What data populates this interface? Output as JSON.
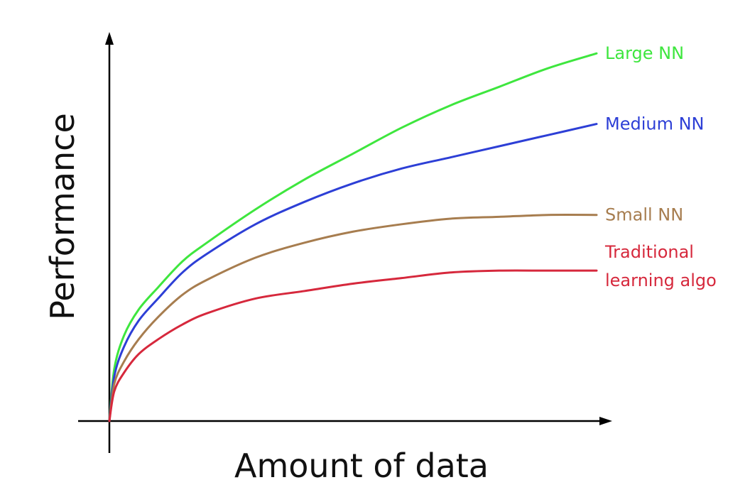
{
  "chart_data": {
    "type": "line",
    "xlabel": "Amount of data",
    "ylabel": "Performance",
    "xlim": [
      0,
      1
    ],
    "ylim": [
      0,
      1
    ],
    "grid": false,
    "legend": "inline-right",
    "series": [
      {
        "name": "Large NN",
        "label_lines": [
          "Large NN"
        ],
        "color": "#3ee63e",
        "x": [
          0,
          0.01,
          0.03,
          0.06,
          0.1,
          0.15,
          0.2,
          0.3,
          0.4,
          0.5,
          0.6,
          0.7,
          0.8,
          0.9,
          1
        ],
        "y": [
          0,
          0.14,
          0.23,
          0.3,
          0.36,
          0.43,
          0.48,
          0.57,
          0.65,
          0.72,
          0.79,
          0.85,
          0.9,
          0.95,
          0.99
        ]
      },
      {
        "name": "Medium NN",
        "label_lines": [
          "Medium NN"
        ],
        "color": "#2d3fd6",
        "x": [
          0,
          0.01,
          0.03,
          0.06,
          0.1,
          0.15,
          0.2,
          0.3,
          0.4,
          0.5,
          0.6,
          0.7,
          0.8,
          0.9,
          1
        ],
        "y": [
          0,
          0.12,
          0.2,
          0.27,
          0.33,
          0.4,
          0.45,
          0.53,
          0.59,
          0.64,
          0.68,
          0.71,
          0.74,
          0.77,
          0.8
        ]
      },
      {
        "name": "Small NN",
        "label_lines": [
          "Small NN"
        ],
        "color": "#a77d4f",
        "x": [
          0,
          0.01,
          0.03,
          0.06,
          0.1,
          0.15,
          0.2,
          0.3,
          0.4,
          0.5,
          0.6,
          0.7,
          0.8,
          0.9,
          1
        ],
        "y": [
          0,
          0.1,
          0.16,
          0.22,
          0.28,
          0.34,
          0.38,
          0.44,
          0.48,
          0.51,
          0.53,
          0.545,
          0.55,
          0.555,
          0.555
        ]
      },
      {
        "name": "Traditional learning algo",
        "label_lines": [
          "Traditional",
          "learning algo"
        ],
        "color": "#d6283c",
        "x": [
          0,
          0.01,
          0.03,
          0.06,
          0.1,
          0.15,
          0.2,
          0.3,
          0.4,
          0.5,
          0.6,
          0.7,
          0.8,
          0.9,
          1
        ],
        "y": [
          0,
          0.08,
          0.13,
          0.18,
          0.22,
          0.26,
          0.29,
          0.33,
          0.35,
          0.37,
          0.385,
          0.4,
          0.405,
          0.405,
          0.405
        ]
      }
    ]
  }
}
